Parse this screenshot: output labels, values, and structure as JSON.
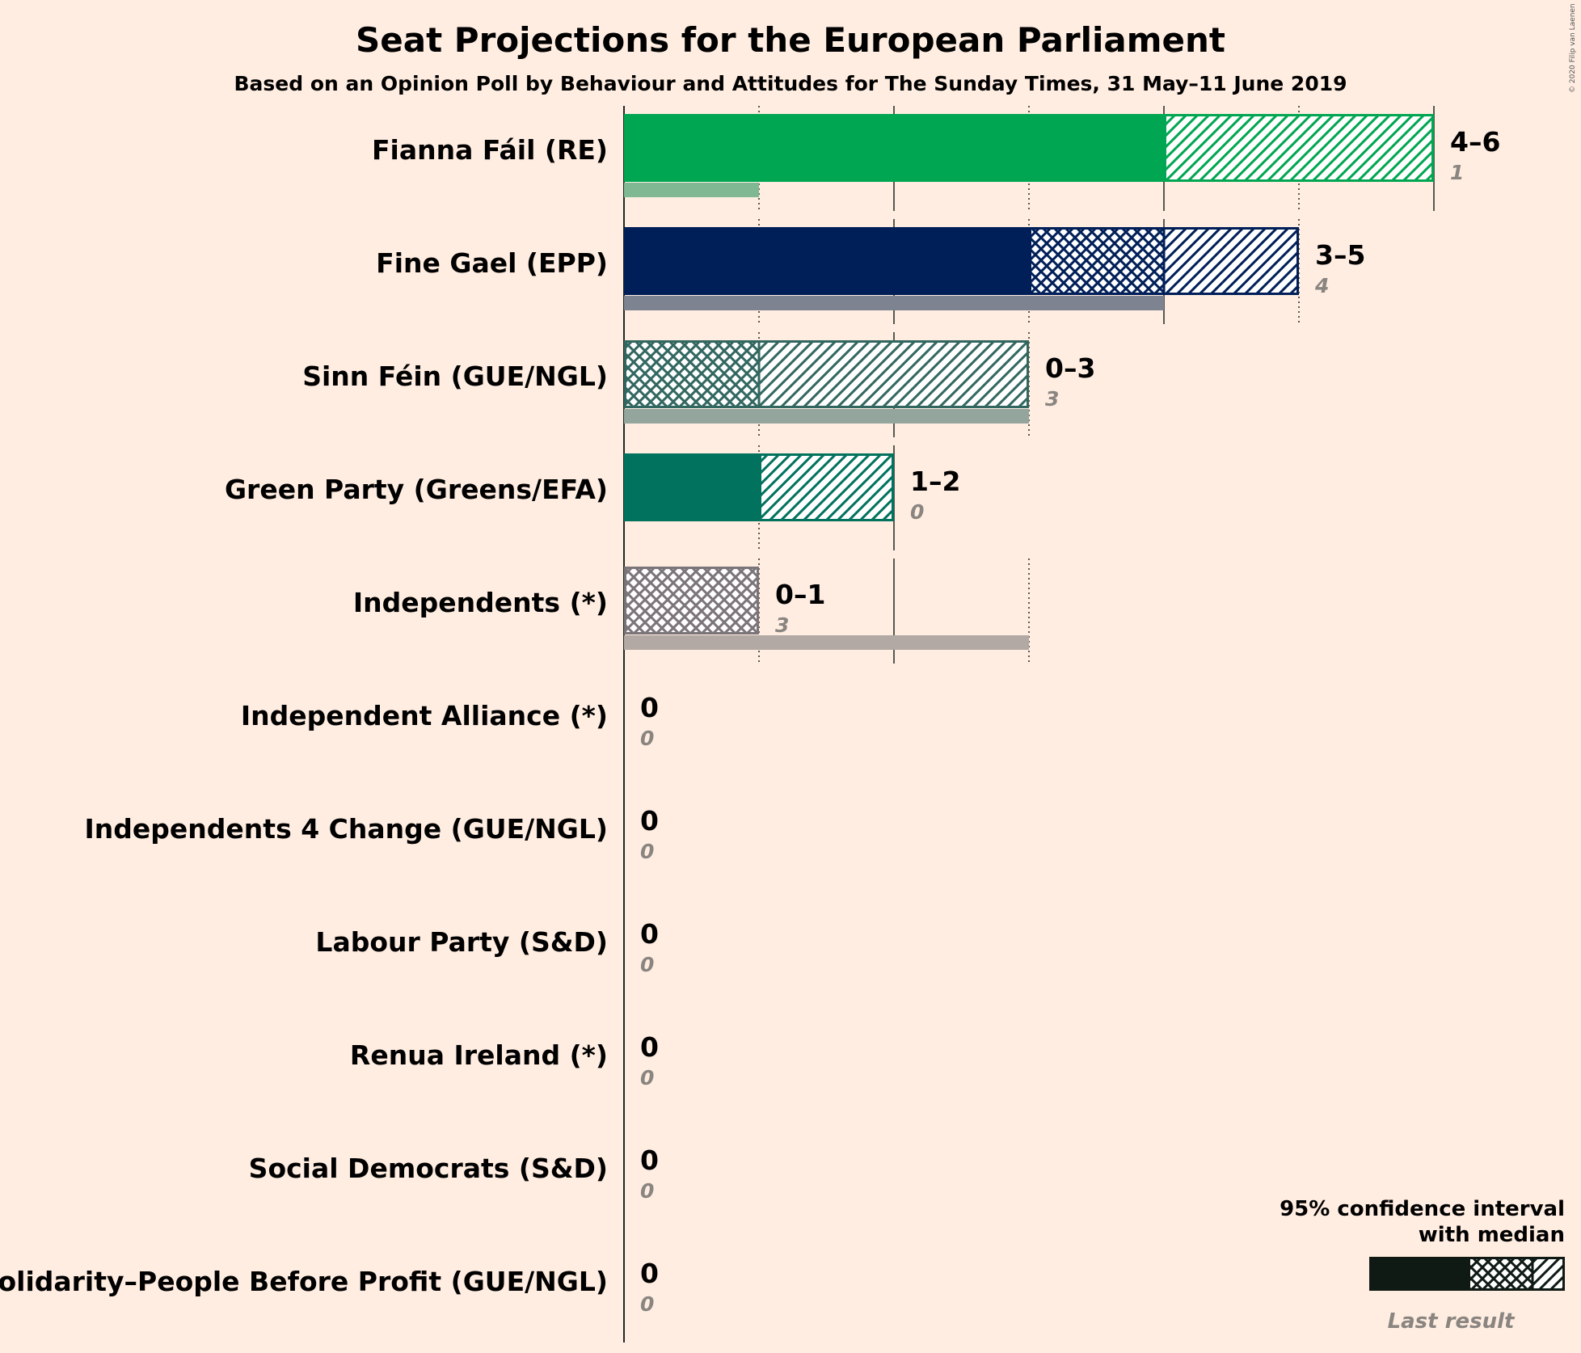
{
  "chart_data": {
    "type": "bar",
    "title": "Seat Projections for the European Parliament",
    "subtitle": "Based on an Opinion Poll by Behaviour and Attitudes for The Sunday Times, 31 May–11 June 2019",
    "copyright": "© 2020 Filip van Laenen",
    "xlim": [
      0,
      6
    ],
    "grid": true,
    "legend": {
      "position": "bottom-right",
      "title_line1": "95% confidence interval",
      "title_line2": "with median",
      "last_result": "Last result"
    },
    "parties": [
      {
        "name": "Fianna Fáil (RE)",
        "low": 4,
        "median": 4,
        "high": 6,
        "range_label": "4–6",
        "last": 1,
        "last_label": "1",
        "color": "#00a651",
        "last_color": "#7fb893"
      },
      {
        "name": "Fine Gael (EPP)",
        "low": 3,
        "median": 4,
        "high": 5,
        "range_label": "3–5",
        "last": 4,
        "last_label": "4",
        "color": "#001f58",
        "last_color": "#7e8391"
      },
      {
        "name": "Sinn Féin (GUE/NGL)",
        "low": 0,
        "median": 1,
        "high": 3,
        "range_label": "0–3",
        "last": 3,
        "last_label": "3",
        "color": "#326760",
        "last_color": "#94a59e"
      },
      {
        "name": "Green Party (Greens/EFA)",
        "low": 1,
        "median": 1,
        "high": 2,
        "range_label": "1–2",
        "last": 0,
        "last_label": "0",
        "color": "#00725d",
        "last_color": "#7fa99b"
      },
      {
        "name": "Independents (*)",
        "low": 0,
        "median": 1,
        "high": 1,
        "range_label": "0–1",
        "last": 3,
        "last_label": "3",
        "color": "#7b7478",
        "last_color": "#b2a9a4"
      },
      {
        "name": "Independent Alliance (*)",
        "low": 0,
        "median": 0,
        "high": 0,
        "range_label": "0",
        "last": 0,
        "last_label": "0",
        "color": "#888888",
        "last_color": "#b8b0a9"
      },
      {
        "name": "Independents 4 Change (GUE/NGL)",
        "low": 0,
        "median": 0,
        "high": 0,
        "range_label": "0",
        "last": 0,
        "last_label": "0",
        "color": "#888888",
        "last_color": "#b8b0a9"
      },
      {
        "name": "Labour Party (S&D)",
        "low": 0,
        "median": 0,
        "high": 0,
        "range_label": "0",
        "last": 0,
        "last_label": "0",
        "color": "#cc0000",
        "last_color": "#d9a49f"
      },
      {
        "name": "Renua Ireland (*)",
        "low": 0,
        "median": 0,
        "high": 0,
        "range_label": "0",
        "last": 0,
        "last_label": "0",
        "color": "#f26722",
        "last_color": "#e8b8a0"
      },
      {
        "name": "Social Democrats (S&D)",
        "low": 0,
        "median": 0,
        "high": 0,
        "range_label": "0",
        "last": 0,
        "last_label": "0",
        "color": "#752f8b",
        "last_color": "#b89fbf"
      },
      {
        "name": "Solidarity–People Before Profit (GUE/NGL)",
        "low": 0,
        "median": 0,
        "high": 0,
        "range_label": "0",
        "last": 0,
        "last_label": "0",
        "color": "#8e2420",
        "last_color": "#c49e98"
      }
    ]
  }
}
